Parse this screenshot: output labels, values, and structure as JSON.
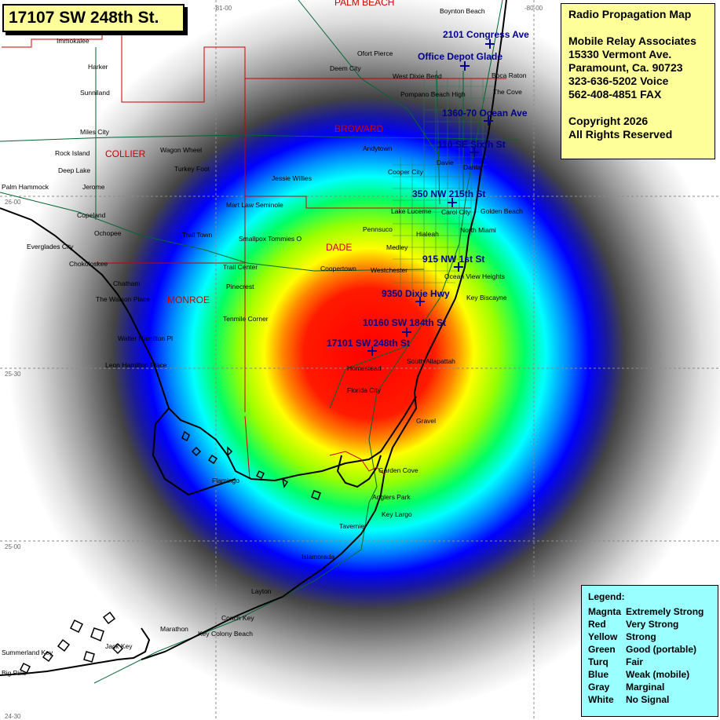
{
  "title": "17107 SW 248th St.",
  "info": {
    "lines": [
      "Radio Propagation Map",
      "",
      "Mobile Relay Associates",
      "15330 Vermont Ave.",
      "Paramount, Ca. 90723",
      "323-636-5202 Voice",
      "562-408-4851 FAX",
      "",
      "Copyright 2026",
      "All Rights Reserved"
    ]
  },
  "legend": {
    "heading": "Legend:",
    "items": [
      {
        "color": "Magnta",
        "meaning": "Extremely Strong"
      },
      {
        "color": "Red",
        "meaning": "Very Strong"
      },
      {
        "color": "Yellow",
        "meaning": "Strong"
      },
      {
        "color": "Green",
        "meaning": "Good (portable)"
      },
      {
        "color": "Turq",
        "meaning": "Fair"
      },
      {
        "color": "Blue",
        "meaning": "Weak (mobile)"
      },
      {
        "color": "Gray",
        "meaning": "Marginal"
      },
      {
        "color": "White",
        "meaning": "No Signal"
      }
    ]
  },
  "colors": {
    "label_box": "#ffff99",
    "legend_box": "#99ffff",
    "site_label": "#00008b",
    "county_label": "#cc0000",
    "county_line": "#cc0000",
    "road": "#006633",
    "coastline": "#000000"
  },
  "grid_labels": {
    "lon": [
      "-81-00",
      "-80-00"
    ],
    "lat": [
      "26-00",
      "25-30",
      "25-00",
      "24-30"
    ]
  },
  "counties": [
    "PALM BEACH",
    "BROWARD",
    "COLLIER",
    "DADE",
    "MONROE"
  ],
  "sites": [
    "2101 Congress Ave",
    "Office Depot Glade",
    "1360-70 Ocean Ave",
    "110 SE Sixth St",
    "350 NW 215th St",
    "915 NW 1st St",
    "9350 Dixie Hwy",
    "10160 SW 184th St",
    "17101 SW 248th St"
  ],
  "places": [
    "Immokalee",
    "Harker",
    "Sunniland",
    "Miles City",
    "Rock Island",
    "Deep Lake",
    "Jerome",
    "Palm Hammock",
    "Copeland",
    "Ochopee",
    "Everglades City",
    "Chokoloskee",
    "Chatham",
    "The Watson Place",
    "Walter Hamilton Pl",
    "Leon Hamilton Place",
    "Wagon Wheel",
    "Turkey Foot",
    "Jessie Willies",
    "Mart Law Seminole",
    "Trail Town",
    "Smallpox Tommies O",
    "Trail Center",
    "Pinecrest",
    "Tenmile Corner",
    "Coopertown",
    "Westchester",
    "Flamingo",
    "Boynton Beach",
    "Ofort Pierce",
    "Deem City",
    "West Dixie Bend",
    "Boca Raton",
    "Pompano Beach High",
    "The Cove",
    "Andytown",
    "Davie",
    "Dania",
    "Cooper City",
    "Lake Lucerne",
    "Carol City",
    "Golden Beach",
    "Pennsuco",
    "Hialeah",
    "North Miami",
    "Medley",
    "Ocean View Heights",
    "Key Biscayne",
    "South Allapattah",
    "Homestead",
    "Florida City",
    "Gravel",
    "Garden Cove",
    "Anglers Park",
    "Key Largo",
    "Tavernier",
    "Islamorada",
    "Layton",
    "Conch Key",
    "Marathon",
    "Key Colony Beach",
    "Summerland Key",
    "Big Pine",
    "Jack Key"
  ]
}
